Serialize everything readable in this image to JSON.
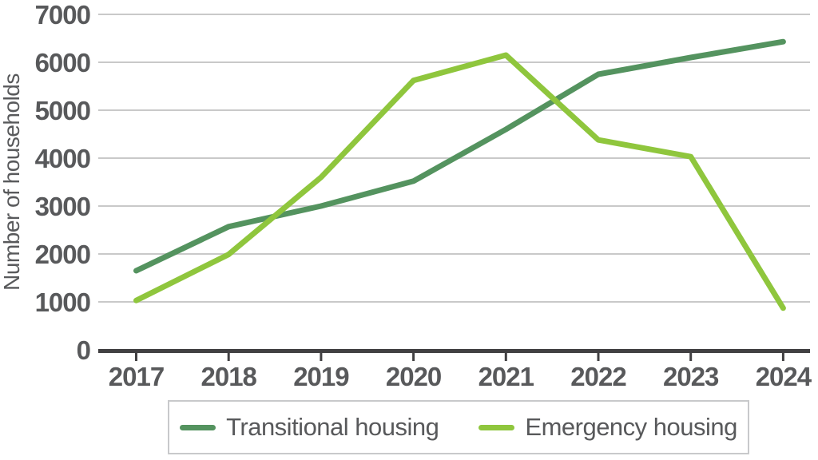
{
  "chart_data": {
    "type": "line",
    "title": "",
    "xlabel": "",
    "ylabel": "Number of households",
    "categories": [
      "2017",
      "2018",
      "2019",
      "2020",
      "2021",
      "2022",
      "2023",
      "2024"
    ],
    "series": [
      {
        "name": "Transitional housing",
        "color": "#54935f",
        "values": [
          1650,
          2570,
          3000,
          3520,
          4600,
          5750,
          6100,
          6430
        ]
      },
      {
        "name": "Emergency housing",
        "color": "#8fc63d",
        "values": [
          1030,
          1990,
          3600,
          5620,
          6150,
          4380,
          4030,
          870
        ]
      }
    ],
    "ylim": [
      0,
      7000
    ],
    "ytick_step": 1000,
    "grid": "horizontal",
    "legend_position": "bottom"
  },
  "style": {
    "axis_color": "#414042",
    "grid_color": "#c9c9c9",
    "text_color": "#58595b",
    "background": "#ffffff"
  }
}
